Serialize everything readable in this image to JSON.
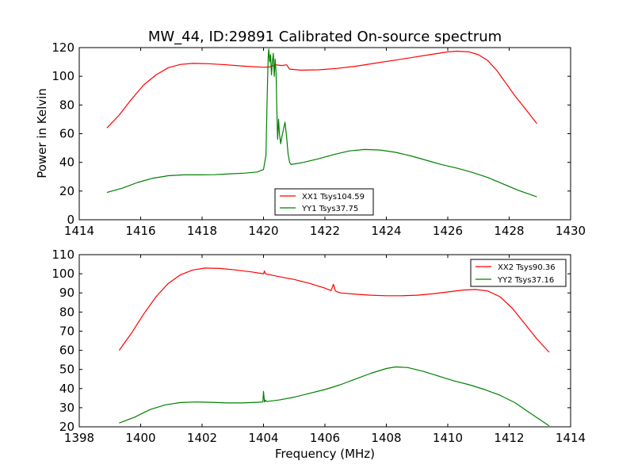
{
  "figure_title": "MW_44, ID:29891 Calibrated On-source spectrum",
  "chart_data": [
    {
      "type": "line",
      "title": "MW_44, ID:29891 Calibrated On-source spectrum",
      "xlabel": "",
      "ylabel": "Power in Kelvin",
      "xlim": [
        1414,
        1430
      ],
      "ylim": [
        0,
        120
      ],
      "x_ticks": [
        1414,
        1416,
        1418,
        1420,
        1422,
        1424,
        1426,
        1428,
        1430
      ],
      "y_ticks": [
        0,
        20,
        40,
        60,
        80,
        100,
        120
      ],
      "grid": false,
      "legend": "lower-center",
      "series": [
        {
          "name": "XX1 Tsys104.59",
          "color": "#ff0000",
          "points": [
            [
              1414.9,
              64
            ],
            [
              1415.3,
              73
            ],
            [
              1415.7,
              84
            ],
            [
              1416.1,
              94
            ],
            [
              1416.5,
              101
            ],
            [
              1416.9,
              106
            ],
            [
              1417.3,
              108.3
            ],
            [
              1417.7,
              109
            ],
            [
              1418.2,
              108.8
            ],
            [
              1418.8,
              108
            ],
            [
              1419.4,
              107
            ],
            [
              1420.0,
              106.3
            ],
            [
              1420.2,
              106.5
            ],
            [
              1420.4,
              108
            ],
            [
              1420.6,
              107.5
            ],
            [
              1420.75,
              108
            ],
            [
              1420.85,
              105
            ],
            [
              1421.2,
              104.3
            ],
            [
              1421.8,
              104.5
            ],
            [
              1422.4,
              105.5
            ],
            [
              1423.0,
              107
            ],
            [
              1423.6,
              109
            ],
            [
              1424.2,
              111
            ],
            [
              1424.8,
              113
            ],
            [
              1425.4,
              115
            ],
            [
              1426.0,
              117
            ],
            [
              1426.3,
              117.5
            ],
            [
              1426.7,
              117
            ],
            [
              1427.0,
              115
            ],
            [
              1427.3,
              111
            ],
            [
              1427.6,
              104
            ],
            [
              1427.9,
              95
            ],
            [
              1428.2,
              86
            ],
            [
              1428.5,
              78
            ],
            [
              1428.9,
              67
            ]
          ]
        },
        {
          "name": "YY1 Tsys37.75",
          "color": "#008000",
          "points": [
            [
              1414.9,
              19
            ],
            [
              1415.4,
              22
            ],
            [
              1415.9,
              26
            ],
            [
              1416.4,
              29
            ],
            [
              1416.9,
              30.7
            ],
            [
              1417.4,
              31.3
            ],
            [
              1417.9,
              31.3
            ],
            [
              1418.4,
              31.4
            ],
            [
              1418.9,
              32
            ],
            [
              1419.4,
              32.5
            ],
            [
              1419.8,
              33.3
            ],
            [
              1420.0,
              35
            ],
            [
              1420.08,
              45
            ],
            [
              1420.12,
              85
            ],
            [
              1420.15,
              112
            ],
            [
              1420.17,
              119
            ],
            [
              1420.2,
              110
            ],
            [
              1420.23,
              115
            ],
            [
              1420.26,
              101
            ],
            [
              1420.29,
              110
            ],
            [
              1420.32,
              116
            ],
            [
              1420.35,
              100
            ],
            [
              1420.38,
              112
            ],
            [
              1420.41,
              102
            ],
            [
              1420.43,
              80
            ],
            [
              1420.46,
              56
            ],
            [
              1420.49,
              70
            ],
            [
              1420.52,
              60
            ],
            [
              1420.56,
              53
            ],
            [
              1420.6,
              58
            ],
            [
              1420.65,
              63
            ],
            [
              1420.7,
              68
            ],
            [
              1420.75,
              58
            ],
            [
              1420.8,
              46
            ],
            [
              1420.85,
              40
            ],
            [
              1420.9,
              38.5
            ],
            [
              1421.3,
              40
            ],
            [
              1421.8,
              42.5
            ],
            [
              1422.3,
              45.5
            ],
            [
              1422.8,
              48
            ],
            [
              1423.3,
              49
            ],
            [
              1423.8,
              48.6
            ],
            [
              1424.3,
              47
            ],
            [
              1424.8,
              44.5
            ],
            [
              1425.3,
              41.5
            ],
            [
              1425.8,
              38.5
            ],
            [
              1426.3,
              36
            ],
            [
              1426.8,
              33
            ],
            [
              1427.3,
              29.5
            ],
            [
              1427.8,
              25
            ],
            [
              1428.3,
              20.5
            ],
            [
              1428.9,
              16
            ]
          ]
        }
      ]
    },
    {
      "type": "line",
      "title": "",
      "xlabel": "Frequency (MHz)",
      "ylabel": "",
      "xlim": [
        1398,
        1414
      ],
      "ylim": [
        20,
        110
      ],
      "x_ticks": [
        1398,
        1400,
        1402,
        1404,
        1406,
        1408,
        1410,
        1412,
        1414
      ],
      "y_ticks": [
        20,
        30,
        40,
        50,
        60,
        70,
        80,
        90,
        100,
        110
      ],
      "grid": false,
      "legend": "top-right",
      "series": [
        {
          "name": "XX2 Tsys90.36",
          "color": "#ff0000",
          "points": [
            [
              1399.3,
              60
            ],
            [
              1399.7,
              69
            ],
            [
              1400.1,
              79
            ],
            [
              1400.5,
              88
            ],
            [
              1400.9,
              95
            ],
            [
              1401.3,
              99.5
            ],
            [
              1401.7,
              102
            ],
            [
              1402.1,
              103
            ],
            [
              1402.6,
              102.8
            ],
            [
              1403.1,
              102
            ],
            [
              1403.6,
              101
            ],
            [
              1404.0,
              100
            ],
            [
              1404.03,
              101.5
            ],
            [
              1404.06,
              100
            ],
            [
              1404.5,
              98.5
            ],
            [
              1405.0,
              97
            ],
            [
              1405.5,
              95
            ],
            [
              1406.0,
              92.5
            ],
            [
              1406.2,
              91.2
            ],
            [
              1406.28,
              94.5
            ],
            [
              1406.34,
              91
            ],
            [
              1406.5,
              90
            ],
            [
              1407.0,
              89.3
            ],
            [
              1407.5,
              88.8
            ],
            [
              1408.0,
              88.5
            ],
            [
              1408.5,
              88.5
            ],
            [
              1409.0,
              88.8
            ],
            [
              1409.5,
              89.5
            ],
            [
              1410.0,
              90.5
            ],
            [
              1410.5,
              91.5
            ],
            [
              1410.9,
              91.8
            ],
            [
              1411.3,
              91
            ],
            [
              1411.7,
              88
            ],
            [
              1412.1,
              82
            ],
            [
              1412.5,
              74
            ],
            [
              1412.9,
              66
            ],
            [
              1413.3,
              59
            ]
          ]
        },
        {
          "name": "YY2 Tsys37.16",
          "color": "#008000",
          "points": [
            [
              1399.3,
              22
            ],
            [
              1399.8,
              25
            ],
            [
              1400.3,
              29
            ],
            [
              1400.8,
              31.5
            ],
            [
              1401.3,
              32.7
            ],
            [
              1401.8,
              33
            ],
            [
              1402.3,
              32.8
            ],
            [
              1402.8,
              32.5
            ],
            [
              1403.3,
              32.5
            ],
            [
              1403.8,
              32.8
            ],
            [
              1403.98,
              33
            ],
            [
              1404.0,
              38.5
            ],
            [
              1404.03,
              33
            ],
            [
              1404.06,
              34
            ],
            [
              1404.1,
              33.2
            ],
            [
              1404.5,
              34
            ],
            [
              1405.0,
              35.5
            ],
            [
              1405.5,
              37.5
            ],
            [
              1406.0,
              39.5
            ],
            [
              1406.5,
              42
            ],
            [
              1407.0,
              45
            ],
            [
              1407.5,
              48
            ],
            [
              1408.0,
              50.5
            ],
            [
              1408.3,
              51.3
            ],
            [
              1408.7,
              51
            ],
            [
              1409.2,
              49
            ],
            [
              1409.7,
              46.5
            ],
            [
              1410.2,
              44
            ],
            [
              1410.7,
              42
            ],
            [
              1411.2,
              39.5
            ],
            [
              1411.7,
              36.5
            ],
            [
              1412.2,
              32.5
            ],
            [
              1412.7,
              27
            ],
            [
              1413.3,
              20.5
            ]
          ]
        }
      ]
    }
  ]
}
